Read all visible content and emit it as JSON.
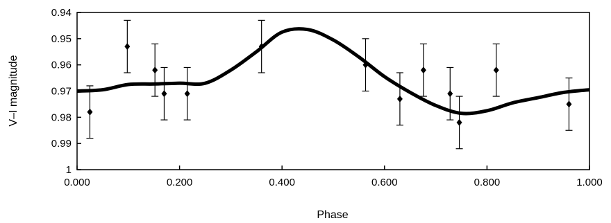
{
  "chart_data": {
    "type": "scatter",
    "xlabel": "Phase",
    "ylabel": "V–I magnitude",
    "xlim": [
      0,
      1
    ],
    "ylim": [
      1,
      0.94
    ],
    "y_inverted": true,
    "grid": false,
    "x_ticks": [
      {
        "value": 0.0,
        "label": "0.000"
      },
      {
        "value": 0.2,
        "label": "0.200"
      },
      {
        "value": 0.4,
        "label": "0.400"
      },
      {
        "value": 0.6,
        "label": "0.600"
      },
      {
        "value": 0.8,
        "label": "0.800"
      },
      {
        "value": 1.0,
        "label": "1.000"
      }
    ],
    "y_ticks": [
      {
        "value": 0.94,
        "label": "0.94"
      },
      {
        "value": 0.95,
        "label": "0.95"
      },
      {
        "value": 0.96,
        "label": "0.96"
      },
      {
        "value": 0.97,
        "label": "0.97"
      },
      {
        "value": 0.98,
        "label": "0.98"
      },
      {
        "value": 0.99,
        "label": "0.99"
      },
      {
        "value": 1.0,
        "label": "1"
      }
    ],
    "series": [
      {
        "kind": "points_with_error_bars",
        "points": [
          {
            "x": 0.025,
            "y": 0.978,
            "err": 0.01
          },
          {
            "x": 0.098,
            "y": 0.953,
            "err": 0.01
          },
          {
            "x": 0.152,
            "y": 0.962,
            "err": 0.01
          },
          {
            "x": 0.17,
            "y": 0.971,
            "err": 0.01
          },
          {
            "x": 0.215,
            "y": 0.971,
            "err": 0.01
          },
          {
            "x": 0.36,
            "y": 0.953,
            "err": 0.01
          },
          {
            "x": 0.563,
            "y": 0.96,
            "err": 0.01
          },
          {
            "x": 0.63,
            "y": 0.973,
            "err": 0.01
          },
          {
            "x": 0.676,
            "y": 0.962,
            "err": 0.01
          },
          {
            "x": 0.728,
            "y": 0.971,
            "err": 0.01
          },
          {
            "x": 0.746,
            "y": 0.982,
            "err": 0.01
          },
          {
            "x": 0.818,
            "y": 0.962,
            "err": 0.01
          },
          {
            "x": 0.96,
            "y": 0.975,
            "err": 0.01
          }
        ]
      },
      {
        "kind": "model_curve",
        "x": [
          0.0,
          0.05,
          0.1,
          0.15,
          0.2,
          0.25,
          0.3,
          0.35,
          0.4,
          0.45,
          0.5,
          0.55,
          0.6,
          0.65,
          0.7,
          0.75,
          0.8,
          0.85,
          0.9,
          0.95,
          1.0
        ],
        "y": [
          0.97,
          0.9695,
          0.9675,
          0.9673,
          0.967,
          0.967,
          0.962,
          0.955,
          0.9475,
          0.9465,
          0.9505,
          0.957,
          0.9645,
          0.9705,
          0.9755,
          0.9785,
          0.9775,
          0.9745,
          0.9725,
          0.9705,
          0.9695
        ]
      }
    ]
  }
}
